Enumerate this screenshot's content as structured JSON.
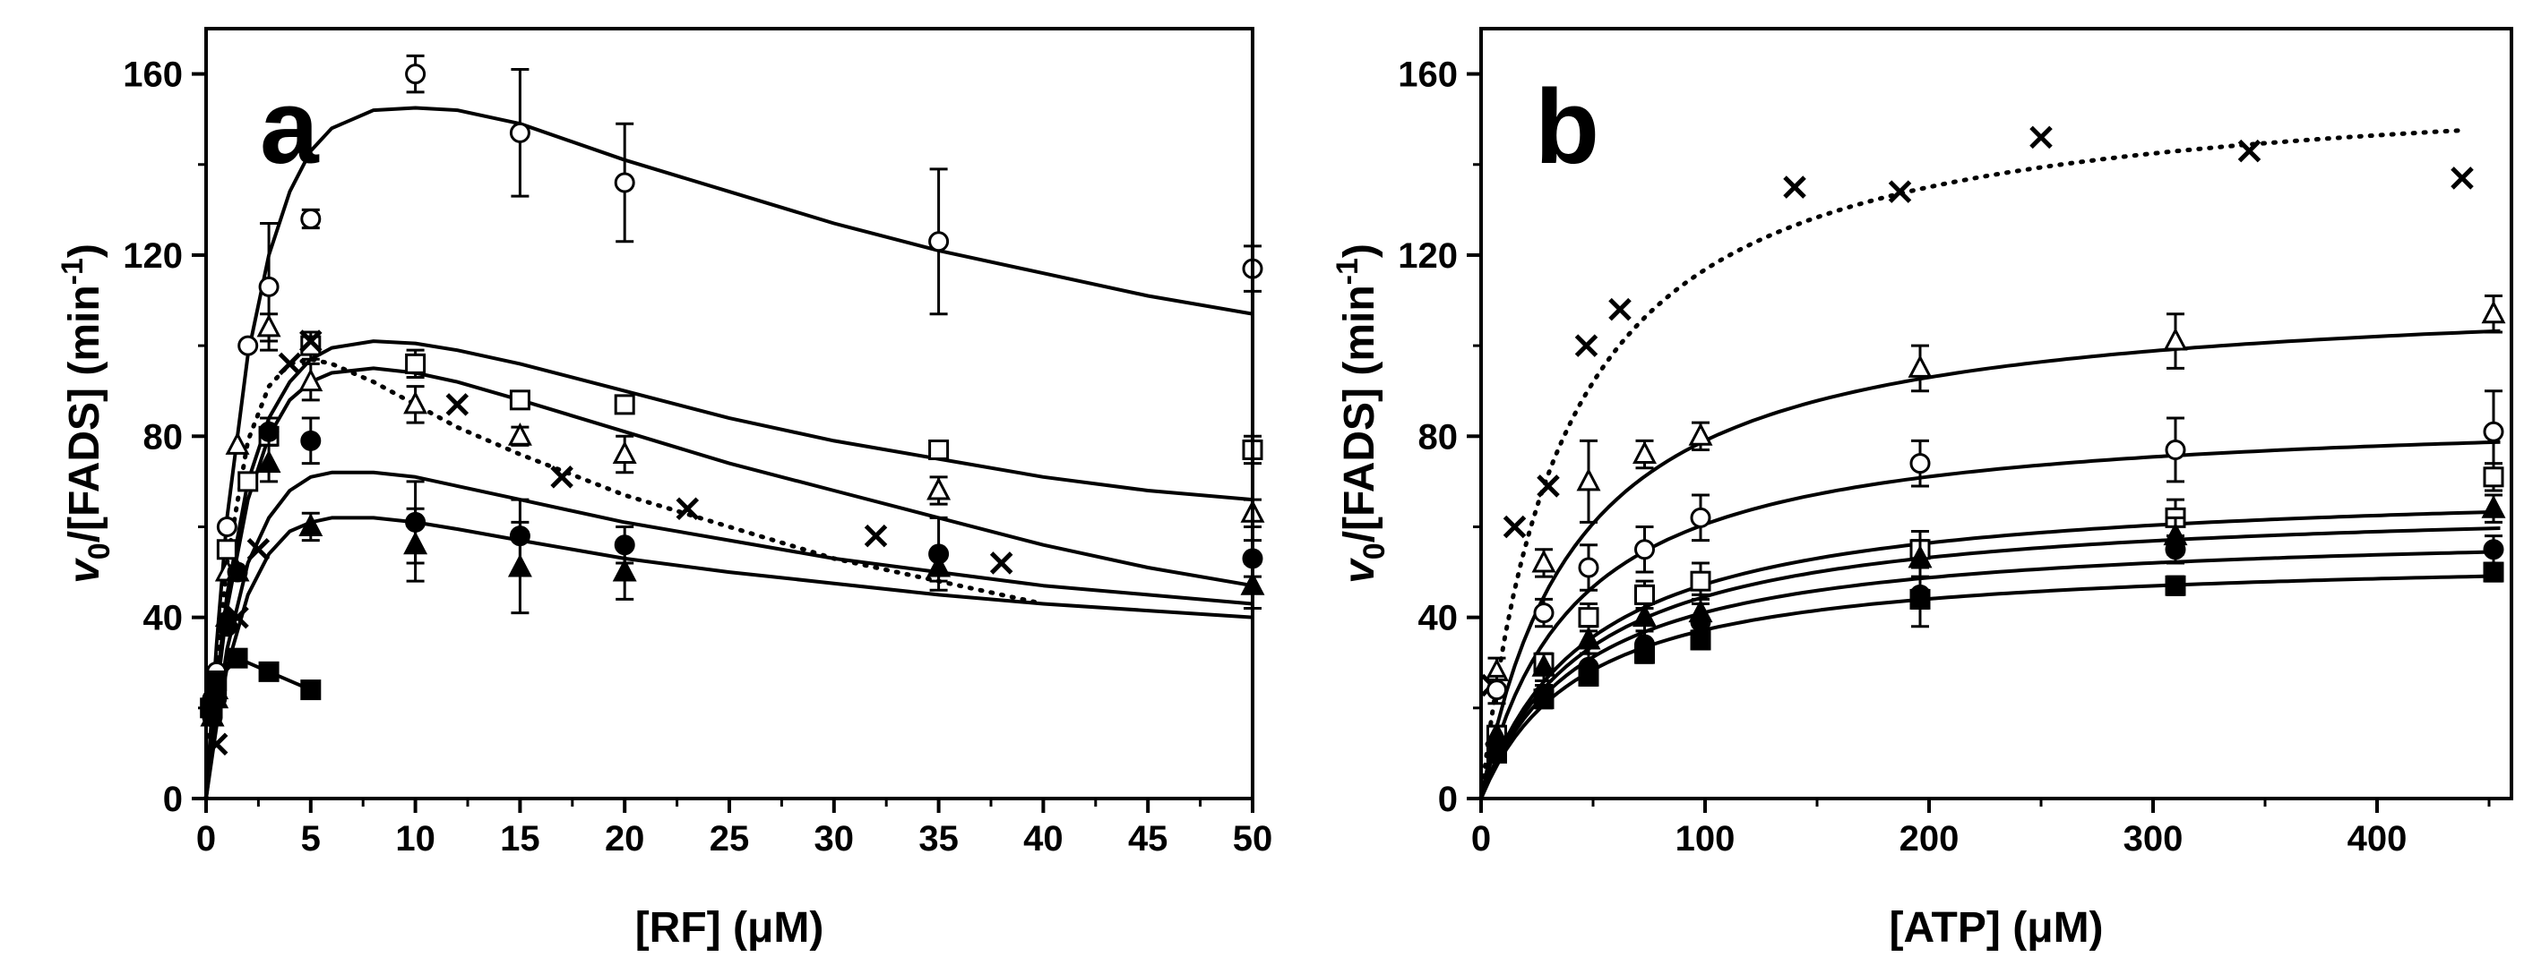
{
  "chart_data": [
    {
      "type": "scatter",
      "panel_label": "a",
      "xlabel": "[RF] (μM)",
      "ylabel_prefix": "v",
      "ylabel_sub": "0",
      "ylabel_mid": "/[FADS] (min",
      "ylabel_sup": "-1",
      "ylabel_suffix": ")",
      "xlim": [
        0,
        50
      ],
      "ylim": [
        0,
        170
      ],
      "xticks": [
        0,
        5,
        10,
        15,
        20,
        25,
        30,
        35,
        40,
        45,
        50
      ],
      "yticks": [
        0,
        40,
        80,
        120,
        160
      ],
      "series": [
        {
          "name": "open-circle",
          "marker": "circle-open",
          "x": [
            0.3,
            0.5,
            1,
            2,
            3,
            5,
            10,
            15,
            20,
            35,
            50
          ],
          "y": [
            22,
            28,
            60,
            100,
            113,
            128,
            160,
            147,
            136,
            123,
            117
          ],
          "err": [
            0,
            0,
            0,
            0,
            14,
            2,
            4,
            14,
            13,
            16,
            5
          ],
          "fit": {
            "style": "solid",
            "x": [
              0,
              0.5,
              1,
              2,
              3,
              4,
              5,
              6,
              8,
              10,
              12,
              15,
              20,
              25,
              30,
              35,
              40,
              45,
              50
            ],
            "y": [
              0,
              34,
              62,
              98,
              120,
              134,
              143,
              148,
              152,
              152.5,
              152,
              149,
              141,
              134,
              127,
              121,
              116,
              111,
              107
            ]
          }
        },
        {
          "name": "open-square",
          "marker": "square-open",
          "x": [
            0.3,
            0.5,
            1,
            2,
            3,
            5,
            10,
            15,
            20,
            35,
            50
          ],
          "y": [
            20,
            25,
            55,
            70,
            80,
            100,
            96,
            88,
            87,
            77,
            77
          ],
          "err": [
            0,
            0,
            0,
            0,
            0,
            3,
            3,
            1,
            1,
            1,
            3
          ],
          "fit": {
            "style": "solid",
            "x": [
              0,
              0.5,
              1,
              2,
              3,
              4,
              5,
              6,
              8,
              10,
              12,
              15,
              20,
              25,
              30,
              35,
              40,
              45,
              50
            ],
            "y": [
              0,
              25,
              45,
              70,
              84,
              92,
              97,
              99.5,
              101,
              100.5,
              99,
              96,
              90,
              84,
              79,
              75,
              71,
              68,
              66
            ]
          }
        },
        {
          "name": "open-triangle",
          "marker": "triangle-open",
          "x": [
            0.3,
            0.5,
            1,
            1.5,
            3,
            5,
            10,
            15,
            20,
            35,
            50
          ],
          "y": [
            18,
            24,
            50,
            78,
            104,
            92,
            87,
            80,
            76,
            68,
            63
          ],
          "err": [
            0,
            0,
            0,
            0,
            3,
            4,
            4,
            2,
            4,
            3,
            3
          ],
          "fit": {
            "style": "solid",
            "x": [
              0,
              0.5,
              1,
              2,
              3,
              4,
              5,
              6,
              8,
              10,
              12,
              15,
              20,
              25,
              30,
              35,
              40,
              45,
              50
            ],
            "y": [
              0,
              23,
              42,
              66,
              80,
              88,
              92,
              94,
              95,
              94,
              92,
              88,
              81,
              74,
              68,
              62,
              56,
              51,
              47
            ]
          }
        },
        {
          "name": "filled-circle",
          "marker": "circle-filled",
          "x": [
            0.3,
            0.5,
            1,
            1.5,
            3,
            5,
            10,
            15,
            20,
            35,
            50
          ],
          "y": [
            18,
            22,
            38,
            50,
            81,
            79,
            61,
            58,
            56,
            54,
            53
          ],
          "err": [
            0,
            0,
            0,
            0,
            3,
            5,
            9,
            8,
            4,
            8,
            4
          ],
          "fit": {
            "style": "solid",
            "x": [
              0,
              0.5,
              1,
              2,
              3,
              4,
              5,
              6,
              8,
              10,
              12,
              15,
              20,
              25,
              30,
              35,
              40,
              45,
              50
            ],
            "y": [
              0,
              18,
              33,
              52,
              62,
              68,
              71,
              72,
              72,
              71,
              69,
              66,
              61,
              57,
              53,
              50,
              47,
              45,
              43
            ]
          }
        },
        {
          "name": "filled-triangle",
          "marker": "triangle-filled",
          "x": [
            0.3,
            0.5,
            1,
            1.5,
            3,
            5,
            10,
            15,
            20,
            35,
            50
          ],
          "y": [
            18,
            22,
            40,
            50,
            74,
            60,
            56,
            51,
            50,
            51,
            47
          ],
          "err": [
            0,
            0,
            0,
            0,
            4,
            3,
            8,
            10,
            6,
            3,
            5
          ],
          "fit": {
            "style": "solid",
            "x": [
              0,
              0.5,
              1,
              2,
              3,
              4,
              5,
              6,
              8,
              10,
              12,
              15,
              20,
              25,
              30,
              35,
              40,
              45,
              50
            ],
            "y": [
              0,
              16,
              29,
              45,
              54,
              59,
              61,
              62,
              62,
              61,
              59.5,
              57,
              53,
              50,
              47.5,
              45,
              43,
              41.5,
              40
            ]
          }
        },
        {
          "name": "filled-square",
          "marker": "square-filled",
          "x": [
            0.2,
            0.5,
            1.5,
            3,
            5
          ],
          "y": [
            20,
            26,
            31,
            28,
            24
          ],
          "err": [
            0,
            0,
            0,
            0,
            0
          ],
          "fit": {
            "style": "solid",
            "x": [
              0.2,
              0.5,
              1.5,
              3,
              5
            ],
            "y": [
              20,
              26,
              31,
              28,
              24
            ]
          }
        },
        {
          "name": "cross",
          "marker": "cross",
          "x": [
            0.5,
            1.5,
            2.5,
            4,
            5,
            12,
            17,
            23,
            32,
            38
          ],
          "y": [
            12,
            40,
            55,
            96,
            101,
            87,
            71,
            64,
            58,
            52
          ],
          "err": [
            0,
            0,
            0,
            0,
            0,
            0,
            0,
            0,
            0,
            0
          ],
          "fit": {
            "style": "dotted",
            "x": [
              0,
              0.5,
              1,
              2,
              3,
              4,
              5,
              6,
              8,
              10,
              12,
              15,
              20,
              25,
              30,
              35,
              40
            ],
            "y": [
              0,
              28,
              52,
              79,
              91,
              96,
              97,
              96,
              92,
              87,
              82,
              76,
              67,
              60,
              53,
              48,
              43
            ]
          }
        }
      ]
    },
    {
      "type": "scatter",
      "panel_label": "b",
      "xlabel": "[ATP] (μM)",
      "ylabel_prefix": "v",
      "ylabel_sub": "0",
      "ylabel_mid": "/[FADS] (min",
      "ylabel_sup": "-1",
      "ylabel_suffix": ")",
      "xlim": [
        0,
        460
      ],
      "ylim": [
        0,
        170
      ],
      "xticks": [
        0,
        100,
        200,
        300,
        400
      ],
      "yticks": [
        0,
        40,
        80,
        120,
        160
      ],
      "series": [
        {
          "name": "cross",
          "marker": "cross",
          "x": [
            5,
            15,
            30,
            47,
            62,
            140,
            187,
            250,
            343,
            438
          ],
          "y": [
            25,
            60,
            69,
            100,
            108,
            135,
            134,
            146,
            143,
            137
          ],
          "err": [
            0,
            0,
            0,
            0,
            0,
            0,
            0,
            0,
            0,
            0
          ],
          "fit": {
            "style": "dotted",
            "vmax": 160,
            "km": 37,
            "xmax": 438
          }
        },
        {
          "name": "open-triangle",
          "marker": "triangle-open",
          "x": [
            7,
            28,
            48,
            73,
            98,
            196,
            310,
            452
          ],
          "y": [
            28,
            52,
            70,
            76,
            80,
            95,
            101,
            107
          ],
          "err": [
            3,
            3,
            9,
            3,
            3,
            5,
            6,
            4
          ],
          "fit": {
            "style": "solid",
            "vmax": 113,
            "km": 43,
            "xmax": 455
          }
        },
        {
          "name": "open-circle",
          "marker": "circle-open",
          "x": [
            7,
            28,
            48,
            73,
            98,
            196,
            310,
            452
          ],
          "y": [
            24,
            41,
            51,
            55,
            62,
            74,
            77,
            81
          ],
          "err": [
            3,
            3,
            5,
            5,
            5,
            5,
            7,
            9
          ],
          "fit": {
            "style": "solid",
            "vmax": 86,
            "km": 42,
            "xmax": 455
          }
        },
        {
          "name": "open-square",
          "marker": "square-open",
          "x": [
            7,
            28,
            48,
            73,
            98,
            196,
            310,
            452
          ],
          "y": [
            14,
            30,
            40,
            45,
            48,
            55,
            62,
            71
          ],
          "err": [
            2,
            2,
            3,
            3,
            4,
            4,
            4,
            3
          ],
          "fit": {
            "style": "solid",
            "vmax": 70,
            "km": 48,
            "xmax": 455
          }
        },
        {
          "name": "filled-triangle",
          "marker": "triangle-filled",
          "x": [
            7,
            28,
            48,
            73,
            98,
            196,
            310,
            452
          ],
          "y": [
            14,
            29,
            35,
            40,
            41,
            53,
            58,
            64
          ],
          "err": [
            2,
            3,
            3,
            3,
            4,
            4,
            4,
            3
          ],
          "fit": {
            "style": "solid",
            "vmax": 66,
            "km": 48,
            "xmax": 455
          }
        },
        {
          "name": "filled-circle",
          "marker": "circle-filled",
          "x": [
            7,
            28,
            48,
            73,
            98,
            196,
            310,
            452
          ],
          "y": [
            11,
            23,
            29,
            34,
            39,
            45,
            55,
            55
          ],
          "err": [
            2,
            2,
            3,
            3,
            4,
            7,
            3,
            3
          ],
          "fit": {
            "style": "solid",
            "vmax": 60,
            "km": 46,
            "xmax": 455
          }
        },
        {
          "name": "filled-square",
          "marker": "square-filled",
          "x": [
            7,
            28,
            48,
            73,
            98,
            196,
            310,
            452
          ],
          "y": [
            10,
            22,
            27,
            32,
            35,
            44,
            47,
            50
          ],
          "err": [
            1,
            2,
            2,
            2,
            2,
            2,
            2,
            2
          ],
          "fit": {
            "style": "solid",
            "vmax": 54,
            "km": 45,
            "xmax": 455
          }
        }
      ]
    }
  ]
}
